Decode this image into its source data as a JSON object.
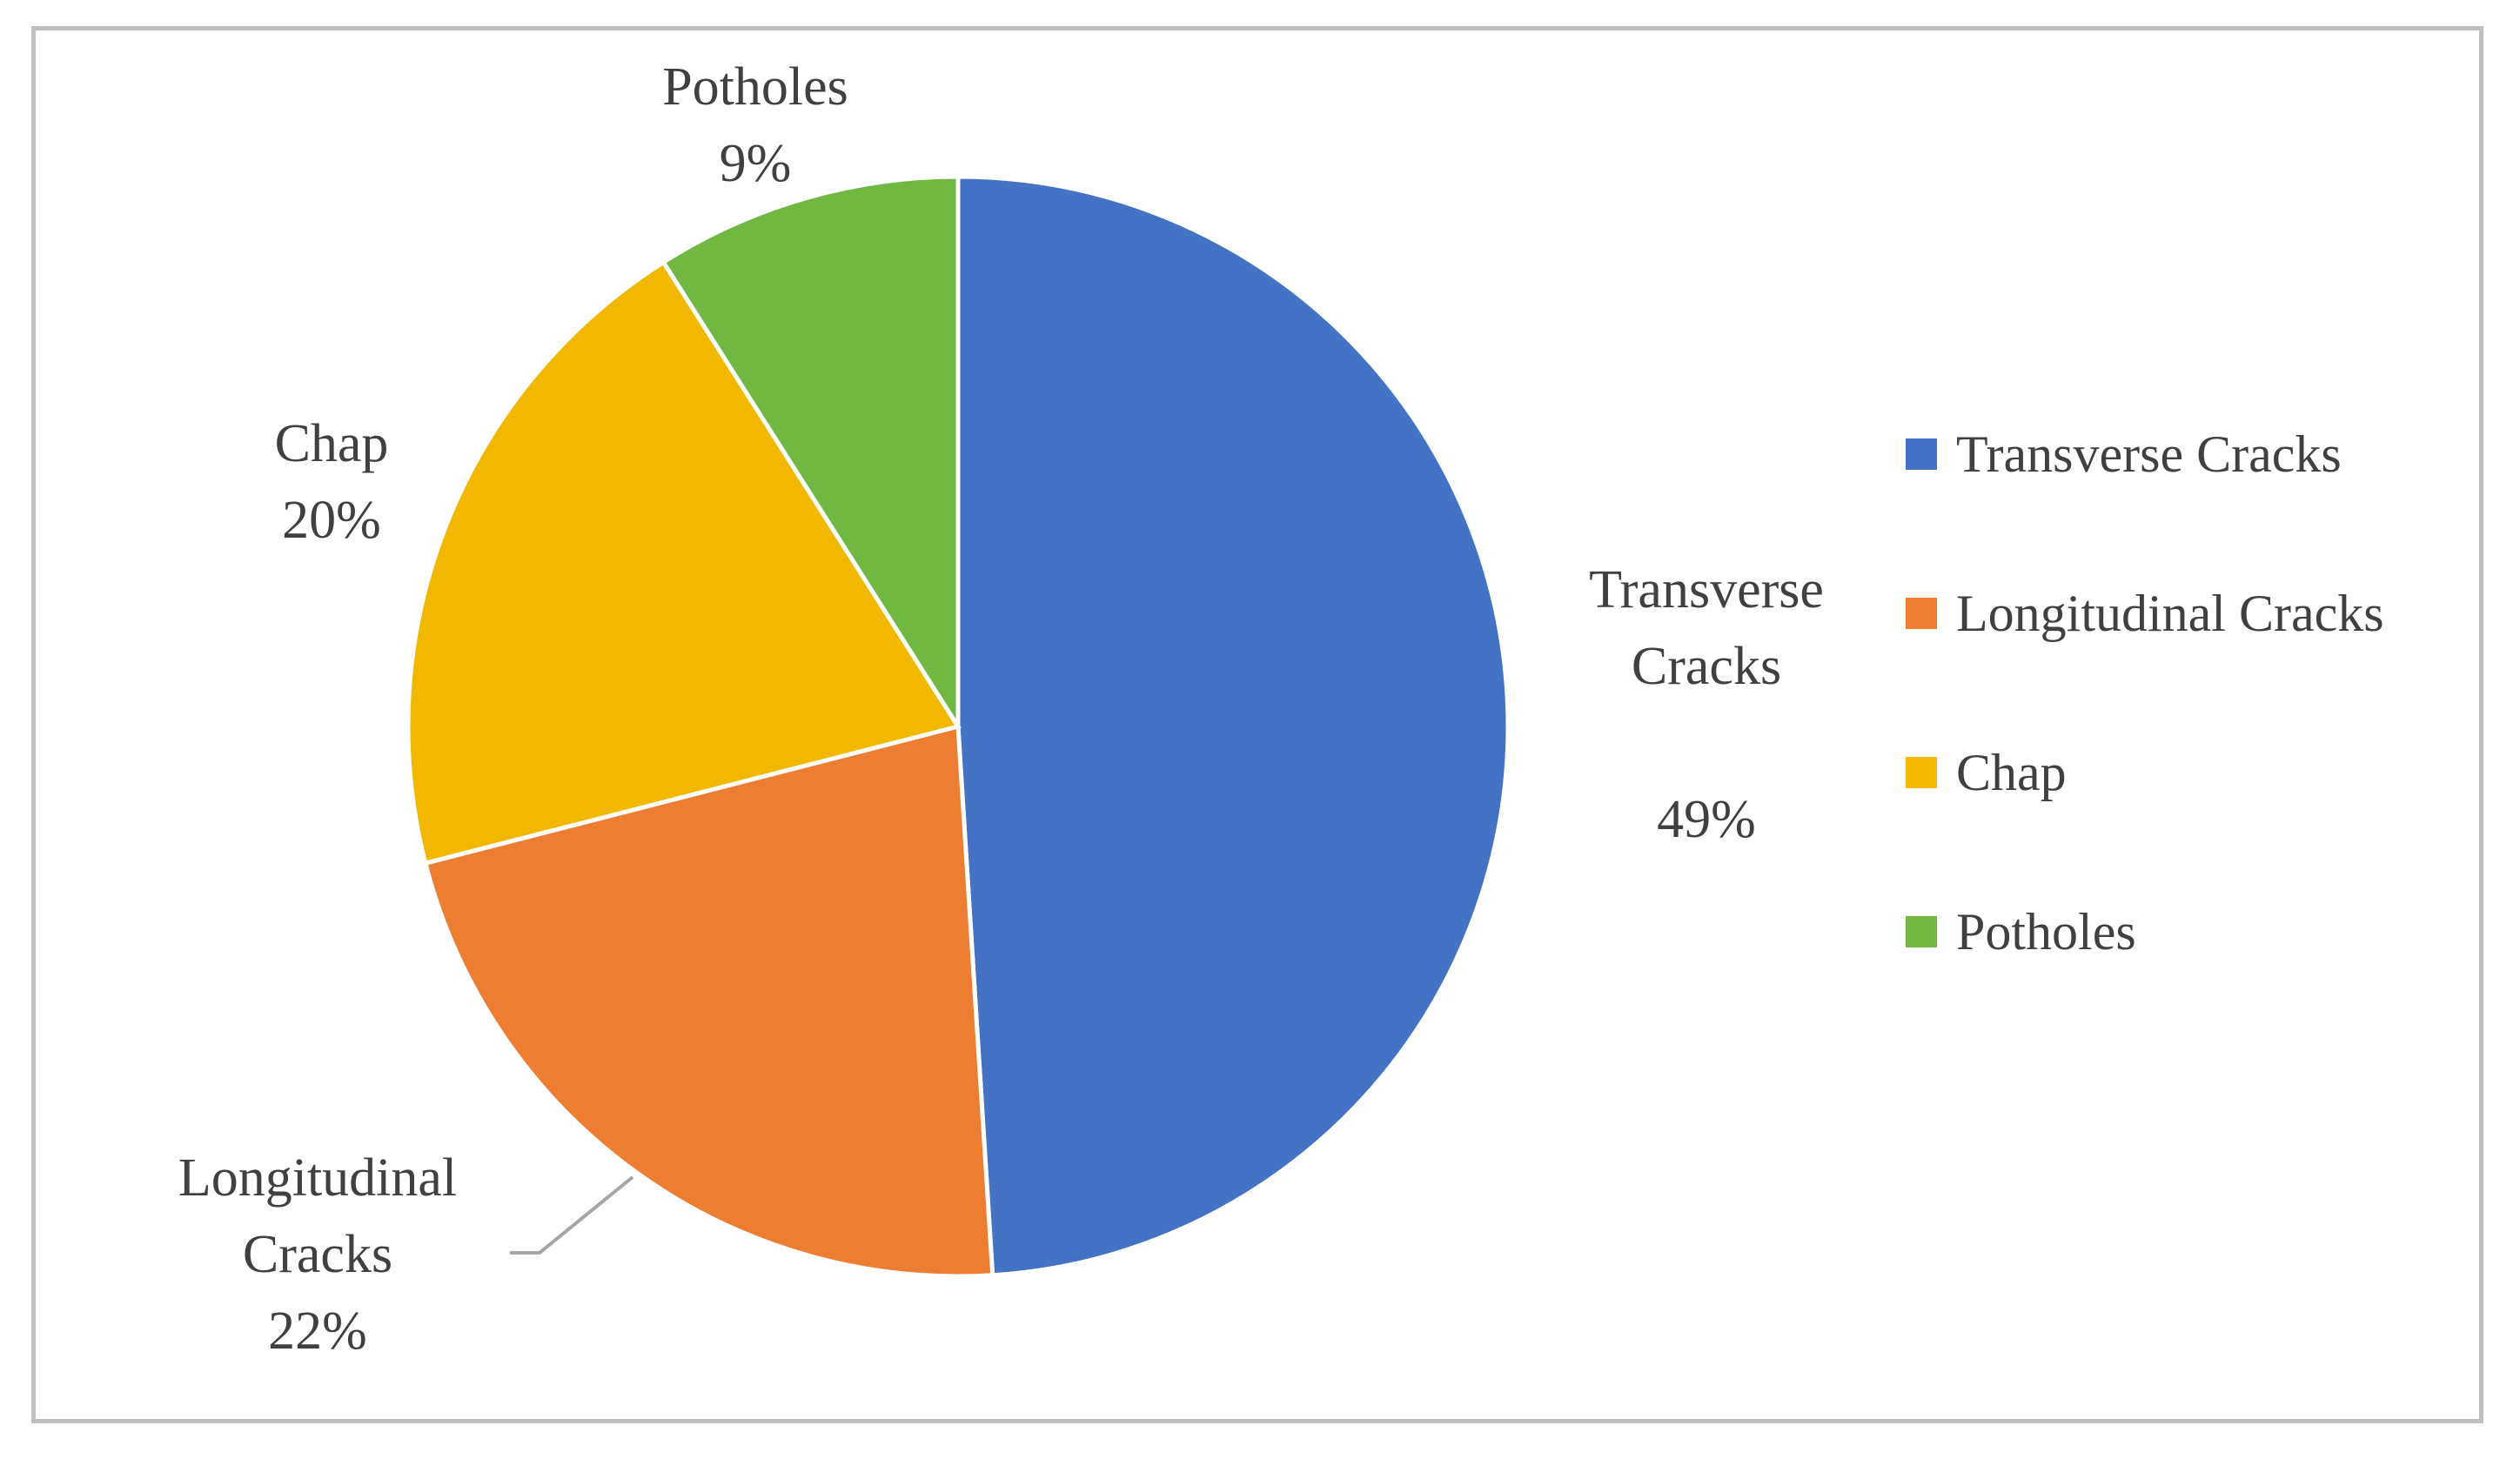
{
  "chart_data": {
    "type": "pie",
    "title": "",
    "categories": [
      "Transverse Cracks",
      "Longitudinal Cracks",
      "Chap",
      "Potholes"
    ],
    "values": [
      49,
      22,
      20,
      9
    ],
    "data_labels": [
      {
        "lines": [
          "Transverse",
          "Cracks",
          "",
          "49%"
        ]
      },
      {
        "lines": [
          "Longitudinal",
          "Cracks",
          "22%"
        ]
      },
      {
        "lines": [
          "Chap",
          "20%"
        ]
      },
      {
        "lines": [
          "Potholes",
          "9%"
        ]
      }
    ],
    "colors": [
      "#4472c4",
      "#ed7d31",
      "#f2b800",
      "#71b843"
    ],
    "start_angle_deg": 0,
    "direction": "clockwise",
    "legend": {
      "placement": "right",
      "entries": [
        "Transverse Cracks",
        "Longitudinal Cracks",
        "Chap",
        "Potholes"
      ]
    }
  }
}
